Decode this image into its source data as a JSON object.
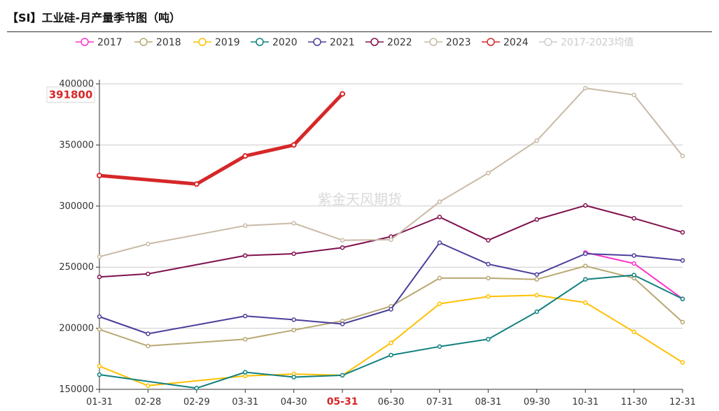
{
  "title": "【SI】工业硅-月产量季节图（吨）",
  "watermark": "紫金天风期货",
  "colors": {
    "2017": "#ff33cc",
    "2018": "#b8a872",
    "2019": "#ffc000",
    "2020": "#108080",
    "2021": "#4a3f9a",
    "2022": "#80104e",
    "2023": "#c8baa6",
    "2024": "#d62728",
    "avg": "#cccccc"
  },
  "chart_data": {
    "type": "line",
    "title": "【SI】工业硅-月产量季节图（吨）",
    "categories": [
      "01-31",
      "02-28",
      "02-29",
      "03-31",
      "04-30",
      "05-31",
      "06-30",
      "07-31",
      "08-31",
      "09-30",
      "10-31",
      "11-30",
      "12-31"
    ],
    "highlight_category": "05-31",
    "ylim": [
      150000,
      400000
    ],
    "yticks": [
      150000,
      200000,
      250000,
      300000,
      350000,
      400000
    ],
    "ytick_labels": [
      "150000",
      "200000",
      "250000",
      "300000",
      "350000",
      "400000"
    ],
    "legend_position": "top-center",
    "series": [
      {
        "name": "2017",
        "key": "2017",
        "values": [
          null,
          null,
          null,
          null,
          null,
          null,
          null,
          null,
          null,
          null,
          262000,
          253000,
          224000
        ]
      },
      {
        "name": "2018",
        "key": "2018",
        "values": [
          199000,
          185500,
          null,
          191000,
          198500,
          206000,
          218000,
          241000,
          241000,
          240000,
          251000,
          241000,
          205000
        ]
      },
      {
        "name": "2019",
        "key": "2019",
        "values": [
          169000,
          153000,
          null,
          161000,
          162500,
          161500,
          188000,
          220000,
          226000,
          227000,
          221000,
          197000,
          172000
        ]
      },
      {
        "name": "2020",
        "key": "2020",
        "values": [
          162000,
          null,
          151000,
          164000,
          160000,
          161500,
          178000,
          185000,
          191000,
          213500,
          240000,
          243500,
          224000
        ]
      },
      {
        "name": "2021",
        "key": "2021",
        "values": [
          209500,
          195500,
          null,
          210000,
          207000,
          203500,
          215500,
          270000,
          252500,
          244000,
          261000,
          259500,
          255500
        ]
      },
      {
        "name": "2022",
        "key": "2022",
        "values": [
          242000,
          244500,
          null,
          259500,
          261000,
          266000,
          275000,
          291000,
          272000,
          289000,
          300500,
          290000,
          278500
        ]
      },
      {
        "name": "2023",
        "key": "2023",
        "values": [
          258500,
          269000,
          null,
          284000,
          286000,
          272000,
          272500,
          303500,
          327000,
          353500,
          396500,
          391000,
          341000
        ]
      },
      {
        "name": "2024",
        "key": "2024",
        "values": [
          325000,
          null,
          318000,
          341000,
          350000,
          391800,
          null,
          null,
          null,
          null,
          null,
          null,
          null
        ]
      },
      {
        "name": "2017-2023均值",
        "key": "avg",
        "values": [
          null,
          null,
          null,
          null,
          null,
          null,
          null,
          null,
          null,
          null,
          null,
          null,
          null
        ]
      }
    ],
    "end_label": "391800"
  }
}
